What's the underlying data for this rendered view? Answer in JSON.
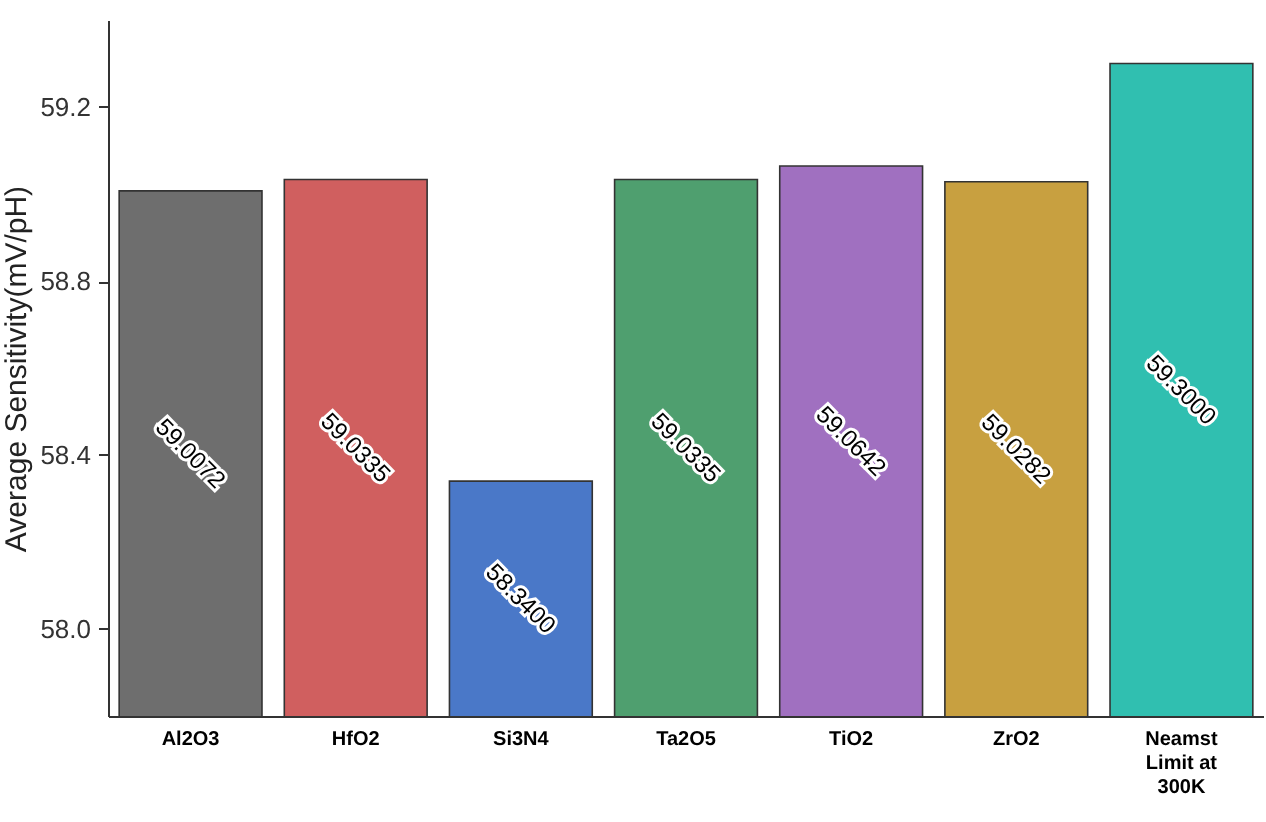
{
  "chart_data": {
    "type": "bar",
    "ylabel": "Average Sensitivity(mV/pH)",
    "categories": [
      "Al2O3",
      "HfO2",
      "Si3N4",
      "Ta2O5",
      "TiO2",
      "ZrO2",
      "Neamst Limit at 300K"
    ],
    "values": [
      59.0072,
      59.0335,
      58.34,
      59.0335,
      59.0642,
      59.0282,
      59.3
    ],
    "value_labels": [
      "59.0072",
      "59.0335",
      "58.3400",
      "59.0335",
      "59.0642",
      "59.0282",
      "59.3000"
    ],
    "colors": [
      "#6e6e6e",
      "#d05f5f",
      "#4a78c8",
      "#4f9f6f",
      "#a070c0",
      "#c8a040",
      "#30bfb0"
    ],
    "ylim": [
      57.8,
      59.4
    ],
    "yticks": [
      {
        "value": 58,
        "label": "58.0"
      },
      {
        "value": 58.4,
        "label": "58.4"
      },
      {
        "value": 58.8,
        "label": "58.8"
      },
      {
        "value": 59.2,
        "label": "59.2"
      }
    ],
    "grid": false,
    "legend": false
  }
}
